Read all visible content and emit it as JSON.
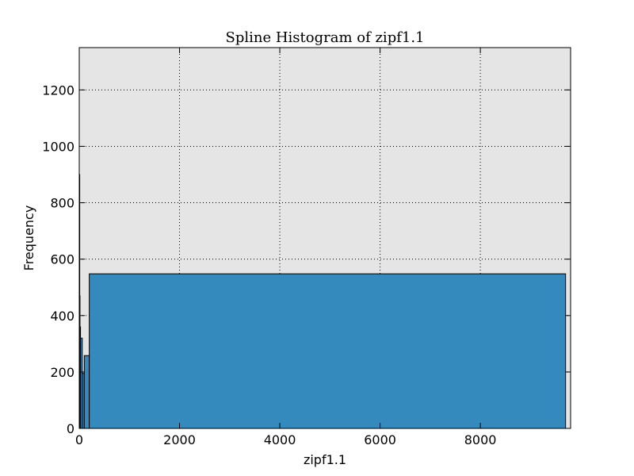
{
  "chart_data": {
    "type": "bar",
    "title": "Spline Histogram of zipf1.1",
    "xlabel": "zipf1.1",
    "ylabel": "Frequency",
    "xlim": [
      0,
      9800
    ],
    "ylim": [
      0,
      1350
    ],
    "grid": true,
    "legend": "none",
    "colors": {
      "bar": "#348abd",
      "plot_bg": "#e5e5e5",
      "edge": "#000000"
    },
    "x_ticks": [
      0,
      2000,
      4000,
      6000,
      8000
    ],
    "y_ticks": [
      0,
      200,
      400,
      600,
      800,
      1000,
      1200
    ],
    "bins": [
      {
        "x_start": 0,
        "x_end": 5,
        "value": 900
      },
      {
        "x_start": 5,
        "x_end": 12,
        "value": 470
      },
      {
        "x_start": 12,
        "x_end": 25,
        "value": 360
      },
      {
        "x_start": 25,
        "x_end": 60,
        "value": 320
      },
      {
        "x_start": 60,
        "x_end": 100,
        "value": 195
      },
      {
        "x_start": 100,
        "x_end": 200,
        "value": 258
      },
      {
        "x_start": 200,
        "x_end": 9700,
        "value": 548
      }
    ]
  }
}
